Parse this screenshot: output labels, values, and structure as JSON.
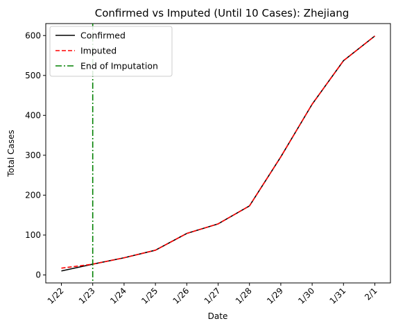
{
  "chart_data": {
    "type": "line",
    "title": "Confirmed vs Imputed (Until 10 Cases): Zhejiang",
    "xlabel": "Date",
    "ylabel": "Total Cases",
    "categories": [
      "1/22",
      "1/23",
      "1/24",
      "1/25",
      "1/26",
      "1/27",
      "1/28",
      "1/29",
      "1/30",
      "1/31",
      "2/1"
    ],
    "ylim": [
      -20,
      630
    ],
    "yticks": [
      0,
      100,
      200,
      300,
      400,
      500,
      600
    ],
    "grid": false,
    "legend_position": "top-left",
    "series": [
      {
        "name": "Confirmed",
        "color": "#000000",
        "style": "solid",
        "values": [
          10,
          27,
          43,
          62,
          104,
          128,
          173,
          296,
          428,
          537,
          599
        ]
      },
      {
        "name": "Imputed",
        "color": "#ff0000",
        "style": "dashed",
        "values": [
          17,
          27,
          43,
          62,
          104,
          128,
          173,
          296,
          428,
          537,
          599
        ]
      }
    ],
    "vline": {
      "name": "End of Imputation",
      "x": "1/23",
      "color": "#008000",
      "style": "dashdot"
    }
  }
}
